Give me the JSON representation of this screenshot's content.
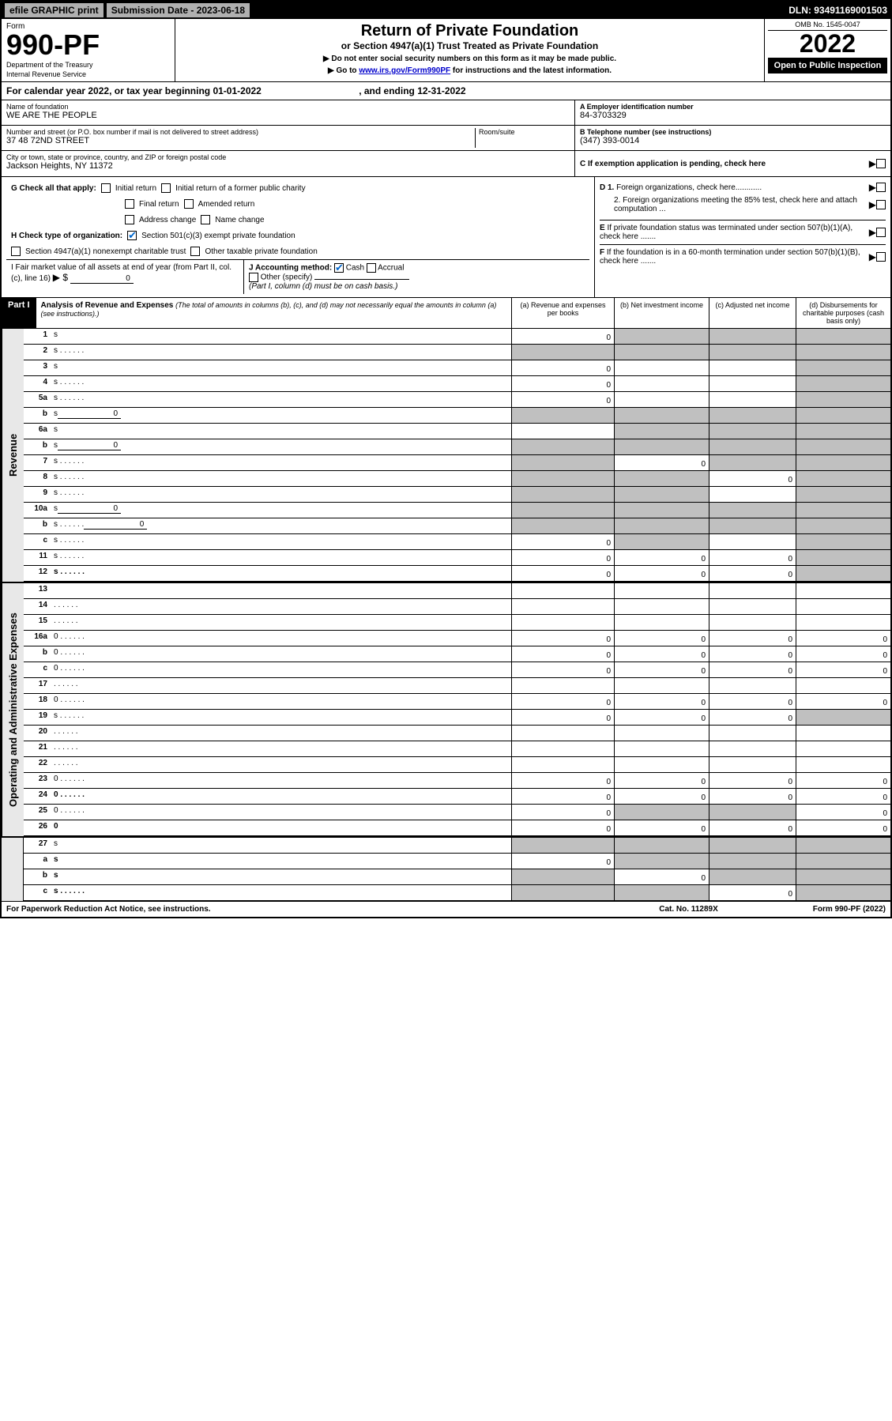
{
  "topbar": {
    "efile": "efile GRAPHIC print",
    "submission": "Submission Date - 2023-06-18",
    "dln": "DLN: 93491169001503"
  },
  "header": {
    "form_label": "Form",
    "form_number": "990-PF",
    "dept1": "Department of the Treasury",
    "dept2": "Internal Revenue Service",
    "title": "Return of Private Foundation",
    "subtitle": "or Section 4947(a)(1) Trust Treated as Private Foundation",
    "instr1": "▶ Do not enter social security numbers on this form as it may be made public.",
    "instr2_pre": "▶ Go to ",
    "instr2_link": "www.irs.gov/Form990PF",
    "instr2_post": " for instructions and the latest information.",
    "omb": "OMB No. 1545-0047",
    "year": "2022",
    "inspection": "Open to Public Inspection"
  },
  "year_line": {
    "pre": "For calendar year 2022, or tax year beginning ",
    "begin": "01-01-2022",
    "mid": ", and ending ",
    "end": "12-31-2022"
  },
  "entity": {
    "name_label": "Name of foundation",
    "name": "WE ARE THE PEOPLE",
    "addr_label": "Number and street (or P.O. box number if mail is not delivered to street address)",
    "addr": "37 48 72ND STREET",
    "room_label": "Room/suite",
    "city_label": "City or town, state or province, country, and ZIP or foreign postal code",
    "city": "Jackson Heights, NY  11372",
    "ein_label": "A Employer identification number",
    "ein": "84-3703329",
    "phone_label": "B Telephone number (see instructions)",
    "phone": "(347) 393-0014",
    "c_label": "C If exemption application is pending, check here",
    "d1": "D 1. Foreign organizations, check here............",
    "d2": "2. Foreign organizations meeting the 85% test, check here and attach computation ...",
    "e_label": "E If private foundation status was terminated under section 507(b)(1)(A), check here .......",
    "f_label": "F If the foundation is in a 60-month termination under section 507(b)(1)(B), check here ......."
  },
  "checks": {
    "g_label": "G Check all that apply:",
    "initial": "Initial return",
    "initial_former": "Initial return of a former public charity",
    "final": "Final return",
    "amended": "Amended return",
    "address": "Address change",
    "name_change": "Name change",
    "h_label": "H Check type of organization:",
    "h_501c3": "Section 501(c)(3) exempt private foundation",
    "h_4947": "Section 4947(a)(1) nonexempt charitable trust",
    "h_other": "Other taxable private foundation",
    "i_label": "I Fair market value of all assets at end of year (from Part II, col. (c), line 16)",
    "i_value": "0",
    "j_label": "J Accounting method:",
    "j_cash": "Cash",
    "j_accrual": "Accrual",
    "j_other": "Other (specify)",
    "j_note": "(Part I, column (d) must be on cash basis.)"
  },
  "part1": {
    "label": "Part I",
    "title": "Analysis of Revenue and Expenses",
    "note": "(The total of amounts in columns (b), (c), and (d) may not necessarily equal the amounts in column (a) (see instructions).)",
    "col_a": "(a)  Revenue and expenses per books",
    "col_b": "(b)  Net investment income",
    "col_c": "(c)  Adjusted net income",
    "col_d": "(d)  Disbursements for charitable purposes (cash basis only)"
  },
  "sides": {
    "revenue": "Revenue",
    "expenses": "Operating and Administrative Expenses"
  },
  "rows": [
    {
      "n": "1",
      "d": "s",
      "a": "0",
      "b": "s",
      "c": "s"
    },
    {
      "n": "2",
      "d": "s",
      "a": "s",
      "b": "s",
      "c": "s",
      "dots": true
    },
    {
      "n": "3",
      "d": "s",
      "a": "0",
      "b": "",
      "c": ""
    },
    {
      "n": "4",
      "d": "s",
      "a": "0",
      "b": "",
      "c": "",
      "dots": true
    },
    {
      "n": "5a",
      "d": "s",
      "a": "0",
      "b": "",
      "c": "",
      "dots": true
    },
    {
      "n": "b",
      "d": "s",
      "inline": "0",
      "a": "s",
      "b": "s",
      "c": "s"
    },
    {
      "n": "6a",
      "d": "s",
      "a": "",
      "b": "s",
      "c": "s"
    },
    {
      "n": "b",
      "d": "s",
      "inline": "0",
      "a": "s",
      "b": "s",
      "c": "s"
    },
    {
      "n": "7",
      "d": "s",
      "a": "s",
      "b": "0",
      "c": "s",
      "dots": true
    },
    {
      "n": "8",
      "d": "s",
      "a": "s",
      "b": "s",
      "c": "0",
      "dots": true
    },
    {
      "n": "9",
      "d": "s",
      "a": "s",
      "b": "s",
      "c": "",
      "dots": true
    },
    {
      "n": "10a",
      "d": "s",
      "inline": "0",
      "a": "s",
      "b": "s",
      "c": "s"
    },
    {
      "n": "b",
      "d": "s",
      "inline": "0",
      "a": "s",
      "b": "s",
      "c": "s",
      "dots": true
    },
    {
      "n": "c",
      "d": "s",
      "a": "0",
      "b": "s",
      "c": "",
      "dots": true
    },
    {
      "n": "11",
      "d": "s",
      "a": "0",
      "b": "0",
      "c": "0",
      "dots": true
    },
    {
      "n": "12",
      "d": "s",
      "bold": true,
      "a": "0",
      "b": "0",
      "c": "0",
      "dots": true
    }
  ],
  "exp_rows": [
    {
      "n": "13",
      "d": "",
      "a": "",
      "b": "",
      "c": ""
    },
    {
      "n": "14",
      "d": "",
      "a": "",
      "b": "",
      "c": "",
      "dots": true
    },
    {
      "n": "15",
      "d": "",
      "a": "",
      "b": "",
      "c": "",
      "dots": true
    },
    {
      "n": "16a",
      "d": "0",
      "a": "0",
      "b": "0",
      "c": "0",
      "dots": true
    },
    {
      "n": "b",
      "d": "0",
      "a": "0",
      "b": "0",
      "c": "0",
      "dots": true
    },
    {
      "n": "c",
      "d": "0",
      "a": "0",
      "b": "0",
      "c": "0",
      "dots": true
    },
    {
      "n": "17",
      "d": "",
      "a": "",
      "b": "",
      "c": "",
      "dots": true
    },
    {
      "n": "18",
      "d": "0",
      "a": "0",
      "b": "0",
      "c": "0",
      "dots": true
    },
    {
      "n": "19",
      "d": "s",
      "a": "0",
      "b": "0",
      "c": "0",
      "dots": true
    },
    {
      "n": "20",
      "d": "",
      "a": "",
      "b": "",
      "c": "",
      "dots": true
    },
    {
      "n": "21",
      "d": "",
      "a": "",
      "b": "",
      "c": "",
      "dots": true
    },
    {
      "n": "22",
      "d": "",
      "a": "",
      "b": "",
      "c": "",
      "dots": true
    },
    {
      "n": "23",
      "d": "0",
      "a": "0",
      "b": "0",
      "c": "0",
      "dots": true
    },
    {
      "n": "24",
      "d": "0",
      "bold": true,
      "a": "0",
      "b": "0",
      "c": "0",
      "dots": true
    },
    {
      "n": "25",
      "d": "0",
      "a": "0",
      "b": "s",
      "c": "s",
      "dots": true
    },
    {
      "n": "26",
      "d": "0",
      "bold": true,
      "a": "0",
      "b": "0",
      "c": "0"
    }
  ],
  "net_rows": [
    {
      "n": "27",
      "d": "s",
      "a": "s",
      "b": "s",
      "c": "s"
    },
    {
      "n": "a",
      "d": "s",
      "bold": true,
      "a": "0",
      "b": "s",
      "c": "s"
    },
    {
      "n": "b",
      "d": "s",
      "bold": true,
      "a": "s",
      "b": "0",
      "c": "s"
    },
    {
      "n": "c",
      "d": "s",
      "bold": true,
      "a": "s",
      "b": "s",
      "c": "0",
      "dots": true
    }
  ],
  "footer": {
    "left": "For Paperwork Reduction Act Notice, see instructions.",
    "mid": "Cat. No. 11289X",
    "right": "Form 990-PF (2022)"
  }
}
